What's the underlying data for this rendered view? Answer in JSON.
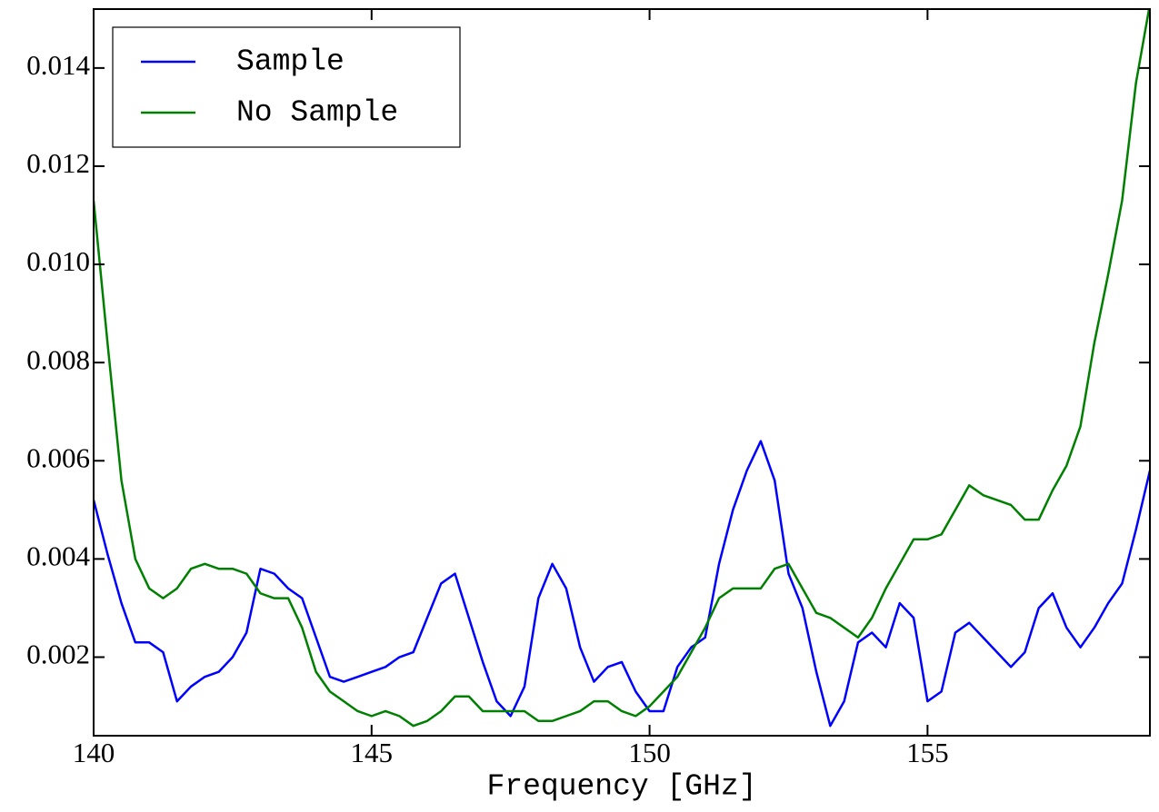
{
  "chart_data": {
    "type": "line",
    "xlabel": "Frequency [GHz]",
    "x": [
      140,
      140.25,
      140.5,
      140.75,
      141,
      141.25,
      141.5,
      141.75,
      142,
      142.25,
      142.5,
      142.75,
      143,
      143.25,
      143.5,
      143.75,
      144,
      144.25,
      144.5,
      144.75,
      145,
      145.25,
      145.5,
      145.75,
      146,
      146.25,
      146.5,
      146.75,
      147,
      147.25,
      147.5,
      147.75,
      148,
      148.25,
      148.5,
      148.75,
      149,
      149.25,
      149.5,
      149.75,
      150,
      150.25,
      150.5,
      150.75,
      151,
      151.25,
      151.5,
      151.75,
      152,
      152.25,
      152.5,
      152.75,
      153,
      153.25,
      153.5,
      153.75,
      154,
      154.25,
      154.5,
      154.75,
      155,
      155.25,
      155.5,
      155.75,
      156,
      156.25,
      156.5,
      156.75,
      157,
      157.25,
      157.5,
      157.75,
      158,
      158.25,
      158.5,
      158.75,
      159
    ],
    "series": [
      {
        "name": "Sample",
        "color": "#0000ff",
        "values": [
          0.0052,
          0.0041,
          0.0031,
          0.0023,
          0.0023,
          0.0021,
          0.0011,
          0.0014,
          0.0016,
          0.0017,
          0.002,
          0.0025,
          0.0038,
          0.0037,
          0.0034,
          0.0032,
          0.0024,
          0.0016,
          0.0015,
          0.0016,
          0.0017,
          0.0018,
          0.002,
          0.0021,
          0.0028,
          0.0035,
          0.0037,
          0.0028,
          0.0019,
          0.0011,
          0.0008,
          0.0014,
          0.0032,
          0.0039,
          0.0034,
          0.0022,
          0.0015,
          0.0018,
          0.0019,
          0.0013,
          0.0009,
          0.0009,
          0.0018,
          0.0022,
          0.0024,
          0.0039,
          0.005,
          0.0058,
          0.0064,
          0.0056,
          0.0037,
          0.003,
          0.0017,
          0.0006,
          0.0011,
          0.0023,
          0.0025,
          0.0022,
          0.0031,
          0.0028,
          0.0011,
          0.0013,
          0.0025,
          0.0027,
          0.0024,
          0.0021,
          0.0018,
          0.0021,
          0.003,
          0.0033,
          0.0026,
          0.0022,
          0.0026,
          0.0031,
          0.0035,
          0.0046,
          0.0058
        ]
      },
      {
        "name": "No Sample",
        "color": "#008000",
        "values": [
          0.0113,
          0.0084,
          0.0056,
          0.004,
          0.0034,
          0.0032,
          0.0034,
          0.0038,
          0.0039,
          0.0038,
          0.0038,
          0.0037,
          0.0033,
          0.0032,
          0.0032,
          0.0026,
          0.0017,
          0.0013,
          0.0011,
          0.0009,
          0.0008,
          0.0009,
          0.0008,
          0.0006,
          0.0007,
          0.0009,
          0.0012,
          0.0012,
          0.0009,
          0.0009,
          0.0009,
          0.0009,
          0.0007,
          0.0007,
          0.0008,
          0.0009,
          0.0011,
          0.0011,
          0.0009,
          0.0008,
          0.001,
          0.0013,
          0.0016,
          0.0021,
          0.0026,
          0.0032,
          0.0034,
          0.0034,
          0.0034,
          0.0038,
          0.0039,
          0.0034,
          0.0029,
          0.0028,
          0.0026,
          0.0024,
          0.0028,
          0.0034,
          0.0039,
          0.0044,
          0.0044,
          0.0045,
          0.005,
          0.0055,
          0.0053,
          0.0052,
          0.0051,
          0.0048,
          0.0048,
          0.0054,
          0.0059,
          0.0067,
          0.0084,
          0.0098,
          0.0113,
          0.0137,
          0.0153
        ]
      }
    ],
    "xlim": [
      140,
      159
    ],
    "xticks": [
      140,
      145,
      150,
      155
    ],
    "ylim": [
      0.0004,
      0.0152
    ],
    "yticks": [
      0.002,
      0.004,
      0.006,
      0.008,
      {
        "value": 0.01,
        "label": "0.010"
      },
      0.012,
      0.014
    ],
    "grid": false,
    "legend": "upper-left"
  }
}
